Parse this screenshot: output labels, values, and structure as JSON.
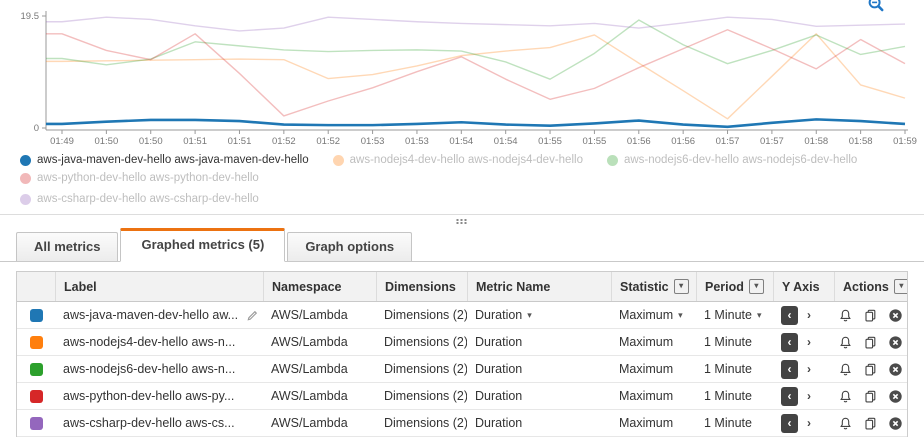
{
  "chart_data": {
    "type": "line",
    "title": "",
    "xlabel": "",
    "ylabel": "",
    "grid": false,
    "legend_position": "bottom",
    "ylim": [
      0,
      19.5
    ],
    "y_tick_labels": [
      "0",
      "19.5"
    ],
    "x_ticks": [
      "01:49",
      "01:50",
      "01:50",
      "01:51",
      "01:51",
      "01:52",
      "01:52",
      "01:53",
      "01:53",
      "01:54",
      "01:54",
      "01:55",
      "01:55",
      "01:56",
      "01:56",
      "01:57",
      "01:57",
      "01:58",
      "01:58",
      "01:59"
    ],
    "series": [
      {
        "name": "aws-java-maven-dev-hello aws-java-maven-dev-hello",
        "color": "#1f77b4",
        "emphasis": true,
        "values": [
          0.7,
          1.1,
          1.4,
          1.4,
          1.2,
          0.6,
          0.5,
          0.5,
          0.7,
          1.0,
          0.6,
          0.4,
          0.8,
          1.3,
          0.6,
          0.2,
          0.9,
          1.5,
          1.2,
          0.7
        ]
      },
      {
        "name": "aws-nodejs4-dev-hello aws-nodejs4-dev-hello",
        "color": "#ff7f0e",
        "emphasis": false,
        "values": [
          11.6,
          11.7,
          11.8,
          11.9,
          12.0,
          11.9,
          8.6,
          9.3,
          10.8,
          12.6,
          13.4,
          14.0,
          16.2,
          11.3,
          6.5,
          1.6,
          9.0,
          16.4,
          7.5,
          5.2
        ]
      },
      {
        "name": "aws-nodejs6-dev-hello aws-nodejs6-dev-hello",
        "color": "#2ca02c",
        "emphasis": false,
        "values": [
          12.1,
          11.0,
          12.0,
          15.0,
          14.3,
          13.6,
          13.3,
          13.5,
          13.6,
          13.4,
          11.5,
          8.5,
          13.0,
          18.8,
          14.5,
          11.2,
          13.5,
          16.2,
          12.8,
          14.2
        ]
      },
      {
        "name": "aws-python-dev-hello aws-python-dev-hello",
        "color": "#d62728",
        "emphasis": false,
        "values": [
          16.4,
          13.5,
          11.9,
          16.4,
          9.5,
          2.1,
          4.7,
          7.0,
          9.8,
          12.4,
          8.5,
          5.0,
          6.9,
          10.5,
          13.8,
          17.1,
          13.8,
          10.3,
          15.4,
          11.2
        ]
      },
      {
        "name": "aws-csharp-dev-hello aws-csharp-dev-hello",
        "color": "#9467bd",
        "emphasis": false,
        "values": [
          18.5,
          19.3,
          18.9,
          17.8,
          16.9,
          17.4,
          19.3,
          18.9,
          18.5,
          18.2,
          18.0,
          17.8,
          18.2,
          17.4,
          18.3,
          19.3,
          18.9,
          17.7,
          17.9,
          18.1
        ]
      }
    ]
  },
  "chart_ui": {
    "zoom_icon": "magnifier-zoom-out",
    "zoom_icon_color": "#2077c6",
    "accent_orange": "#ec7211"
  },
  "tabs": {
    "all_metrics": "All metrics",
    "graphed_metrics": "Graphed metrics (5)",
    "graph_options": "Graph options",
    "active_tab": "Graphed metrics (5)"
  },
  "table": {
    "columns": [
      {
        "label": "",
        "filter": false
      },
      {
        "label": "Label",
        "filter": false
      },
      {
        "label": "Namespace",
        "filter": false
      },
      {
        "label": "Dimensions",
        "filter": false
      },
      {
        "label": "Metric Name",
        "filter": false
      },
      {
        "label": "Statistic",
        "filter": true
      },
      {
        "label": "Period",
        "filter": true
      },
      {
        "label": "Y Axis",
        "filter": false
      },
      {
        "label": "Actions",
        "filter": true
      }
    ],
    "rows": [
      {
        "swatch_color": "#1f77b4",
        "label": "aws-java-maven-dev-hello aw...",
        "has_edit_icon": true,
        "has_label_dropdown": true,
        "namespace": "AWS/Lambda",
        "dimensions": "Dimensions (2)",
        "metric_name": "Duration",
        "metric_dropdown": true,
        "statistic": "Maximum",
        "statistic_dropdown": true,
        "period": "1 Minute",
        "period_dropdown": true,
        "y_axis": "left",
        "actions": [
          "alarm-icon",
          "duplicate-icon",
          "remove-icon"
        ]
      },
      {
        "swatch_color": "#ff7f0e",
        "label": "aws-nodejs4-dev-hello aws-n...",
        "has_edit_icon": false,
        "has_label_dropdown": false,
        "namespace": "AWS/Lambda",
        "dimensions": "Dimensions (2)",
        "metric_name": "Duration",
        "metric_dropdown": false,
        "statistic": "Maximum",
        "statistic_dropdown": false,
        "period": "1 Minute",
        "period_dropdown": false,
        "y_axis": "left",
        "actions": [
          "alarm-icon",
          "duplicate-icon",
          "remove-icon"
        ]
      },
      {
        "swatch_color": "#2ca02c",
        "label": "aws-nodejs6-dev-hello aws-n...",
        "has_edit_icon": false,
        "has_label_dropdown": false,
        "namespace": "AWS/Lambda",
        "dimensions": "Dimensions (2)",
        "metric_name": "Duration",
        "metric_dropdown": false,
        "statistic": "Maximum",
        "statistic_dropdown": false,
        "period": "1 Minute",
        "period_dropdown": false,
        "y_axis": "left",
        "actions": [
          "alarm-icon",
          "duplicate-icon",
          "remove-icon"
        ]
      },
      {
        "swatch_color": "#d62728",
        "label": "aws-python-dev-hello aws-py...",
        "has_edit_icon": false,
        "has_label_dropdown": false,
        "namespace": "AWS/Lambda",
        "dimensions": "Dimensions (2)",
        "metric_name": "Duration",
        "metric_dropdown": false,
        "statistic": "Maximum",
        "statistic_dropdown": false,
        "period": "1 Minute",
        "period_dropdown": false,
        "y_axis": "left",
        "actions": [
          "alarm-icon",
          "duplicate-icon",
          "remove-icon"
        ]
      },
      {
        "swatch_color": "#9467bd",
        "label": "aws-csharp-dev-hello aws-cs...",
        "has_edit_icon": false,
        "has_label_dropdown": false,
        "namespace": "AWS/Lambda",
        "dimensions": "Dimensions (2)",
        "metric_name": "Duration",
        "metric_dropdown": false,
        "statistic": "Maximum",
        "statistic_dropdown": false,
        "period": "1 Minute",
        "period_dropdown": false,
        "y_axis": "left",
        "actions": [
          "alarm-icon",
          "duplicate-icon",
          "remove-icon"
        ]
      }
    ]
  }
}
